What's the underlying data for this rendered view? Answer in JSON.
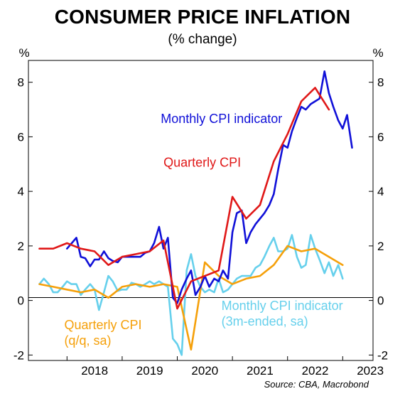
{
  "title": "CONSUMER PRICE INFLATION",
  "subtitle": "(% change)",
  "source": "Source: CBA, Macrobond",
  "chart_data": {
    "type": "line",
    "title": "CONSUMER PRICE INFLATION",
    "subtitle": "(% change)",
    "ylabel_left": "%",
    "ylabel_right": "%",
    "ylim": [
      -2.2,
      8.8
    ],
    "yticks": [
      -2,
      0,
      2,
      4,
      6,
      8
    ],
    "xlim": [
      2017.3,
      2023.55
    ],
    "xtick_labels": [
      "2018",
      "2019",
      "2020",
      "2021",
      "2022",
      "2023"
    ],
    "xtick_positions": [
      2018,
      2019,
      2020,
      2021,
      2022,
      2023
    ],
    "grid": false,
    "series": [
      {
        "name": "Monthly CPI indicator",
        "color": "#1010d8",
        "label_at": [
          2019.7,
          6.5
        ],
        "points": [
          [
            2018.0,
            1.9
          ],
          [
            2018.17,
            2.3
          ],
          [
            2018.25,
            1.6
          ],
          [
            2018.33,
            1.55
          ],
          [
            2018.42,
            1.25
          ],
          [
            2018.5,
            1.5
          ],
          [
            2018.58,
            1.5
          ],
          [
            2018.67,
            1.8
          ],
          [
            2018.75,
            1.55
          ],
          [
            2018.83,
            1.45
          ],
          [
            2018.92,
            1.4
          ],
          [
            2019.0,
            1.6
          ],
          [
            2019.08,
            1.6
          ],
          [
            2019.17,
            1.6
          ],
          [
            2019.25,
            1.6
          ],
          [
            2019.33,
            1.6
          ],
          [
            2019.42,
            1.75
          ],
          [
            2019.5,
            1.8
          ],
          [
            2019.58,
            2.1
          ],
          [
            2019.67,
            2.7
          ],
          [
            2019.75,
            1.9
          ],
          [
            2019.83,
            2.3
          ],
          [
            2019.92,
            0.1
          ],
          [
            2020.0,
            -0.1
          ],
          [
            2020.08,
            0.4
          ],
          [
            2020.17,
            0.8
          ],
          [
            2020.25,
            1.1
          ],
          [
            2020.33,
            0.2
          ],
          [
            2020.42,
            0.5
          ],
          [
            2020.5,
            0.9
          ],
          [
            2020.58,
            0.5
          ],
          [
            2020.67,
            0.8
          ],
          [
            2020.75,
            0.7
          ],
          [
            2020.83,
            1.1
          ],
          [
            2020.92,
            0.8
          ],
          [
            2021.0,
            2.5
          ],
          [
            2021.08,
            3.2
          ],
          [
            2021.17,
            3.3
          ],
          [
            2021.25,
            2.1
          ],
          [
            2021.33,
            2.5
          ],
          [
            2021.42,
            2.8
          ],
          [
            2021.5,
            3.0
          ],
          [
            2021.58,
            3.2
          ],
          [
            2021.67,
            3.5
          ],
          [
            2021.75,
            3.9
          ],
          [
            2021.83,
            4.8
          ],
          [
            2021.92,
            5.7
          ],
          [
            2022.0,
            5.6
          ],
          [
            2022.08,
            6.2
          ],
          [
            2022.17,
            6.7
          ],
          [
            2022.25,
            7.1
          ],
          [
            2022.33,
            7.0
          ],
          [
            2022.42,
            7.2
          ],
          [
            2022.5,
            7.3
          ],
          [
            2022.58,
            7.4
          ],
          [
            2022.67,
            8.4
          ],
          [
            2022.75,
            7.6
          ],
          [
            2022.83,
            7.1
          ],
          [
            2022.92,
            6.6
          ],
          [
            2023.0,
            6.3
          ],
          [
            2023.08,
            6.8
          ],
          [
            2023.17,
            5.6
          ]
        ]
      },
      {
        "name": "Quarterly CPI",
        "color": "#e01818",
        "label_at": [
          2019.75,
          4.9
        ],
        "points": [
          [
            2017.5,
            1.9
          ],
          [
            2017.75,
            1.9
          ],
          [
            2018.0,
            2.1
          ],
          [
            2018.25,
            1.9
          ],
          [
            2018.5,
            1.8
          ],
          [
            2018.75,
            1.3
          ],
          [
            2019.0,
            1.6
          ],
          [
            2019.25,
            1.7
          ],
          [
            2019.5,
            1.8
          ],
          [
            2019.75,
            2.2
          ],
          [
            2020.0,
            -0.3
          ],
          [
            2020.25,
            0.7
          ],
          [
            2020.5,
            0.9
          ],
          [
            2020.75,
            1.1
          ],
          [
            2021.0,
            3.8
          ],
          [
            2021.25,
            3.0
          ],
          [
            2021.5,
            3.5
          ],
          [
            2021.75,
            5.1
          ],
          [
            2022.0,
            6.1
          ],
          [
            2022.25,
            7.3
          ],
          [
            2022.5,
            7.8
          ],
          [
            2022.75,
            7.0
          ]
        ]
      },
      {
        "name": "Quarterly CPI (q/q, sa)",
        "label_lines": [
          "Quarterly CPI",
          "(q/q, sa)"
        ],
        "color": "#f5a00a",
        "label_at": [
          2017.95,
          -1.05
        ],
        "points": [
          [
            2017.5,
            0.6
          ],
          [
            2017.75,
            0.5
          ],
          [
            2018.0,
            0.4
          ],
          [
            2018.25,
            0.3
          ],
          [
            2018.5,
            0.4
          ],
          [
            2018.75,
            0.1
          ],
          [
            2019.0,
            0.5
          ],
          [
            2019.25,
            0.6
          ],
          [
            2019.5,
            0.5
          ],
          [
            2019.75,
            0.6
          ],
          [
            2020.0,
            0.5
          ],
          [
            2020.25,
            -1.8
          ],
          [
            2020.5,
            1.4
          ],
          [
            2020.75,
            0.9
          ],
          [
            2021.0,
            0.6
          ],
          [
            2021.25,
            0.8
          ],
          [
            2021.5,
            0.9
          ],
          [
            2021.75,
            1.3
          ],
          [
            2022.0,
            2.0
          ],
          [
            2022.25,
            1.8
          ],
          [
            2022.5,
            1.9
          ],
          [
            2022.75,
            1.6
          ],
          [
            2023.0,
            1.3
          ]
        ]
      },
      {
        "name": "Monthly CPI indicator (3m-ended, sa)",
        "label_lines": [
          "Monthly CPI indicator",
          "(3m-ended, sa)"
        ],
        "color": "#66d0ec",
        "label_at": [
          2020.8,
          -0.35
        ],
        "points": [
          [
            2017.5,
            0.6
          ],
          [
            2017.58,
            0.8
          ],
          [
            2017.67,
            0.6
          ],
          [
            2017.75,
            0.3
          ],
          [
            2017.83,
            0.3
          ],
          [
            2017.92,
            0.5
          ],
          [
            2018.0,
            0.7
          ],
          [
            2018.08,
            0.6
          ],
          [
            2018.17,
            0.6
          ],
          [
            2018.25,
            0.2
          ],
          [
            2018.33,
            0.4
          ],
          [
            2018.42,
            0.6
          ],
          [
            2018.5,
            0.4
          ],
          [
            2018.58,
            -0.35
          ],
          [
            2018.67,
            0.3
          ],
          [
            2018.75,
            0.9
          ],
          [
            2018.83,
            0.7
          ],
          [
            2018.92,
            0.35
          ],
          [
            2019.0,
            0.4
          ],
          [
            2019.08,
            0.4
          ],
          [
            2019.17,
            0.65
          ],
          [
            2019.25,
            0.6
          ],
          [
            2019.33,
            0.5
          ],
          [
            2019.42,
            0.6
          ],
          [
            2019.5,
            0.7
          ],
          [
            2019.58,
            0.6
          ],
          [
            2019.67,
            0.7
          ],
          [
            2019.75,
            0.6
          ],
          [
            2019.83,
            0.5
          ],
          [
            2019.92,
            -1.4
          ],
          [
            2020.0,
            -1.6
          ],
          [
            2020.08,
            -2.0
          ],
          [
            2020.17,
            1.1
          ],
          [
            2020.25,
            1.7
          ],
          [
            2020.33,
            0.9
          ],
          [
            2020.42,
            0.5
          ],
          [
            2020.5,
            0.3
          ],
          [
            2020.58,
            0.4
          ],
          [
            2020.67,
            0.3
          ],
          [
            2020.75,
            0.8
          ],
          [
            2020.83,
            0.3
          ],
          [
            2020.92,
            0.4
          ],
          [
            2021.0,
            0.6
          ],
          [
            2021.08,
            0.8
          ],
          [
            2021.17,
            0.9
          ],
          [
            2021.25,
            0.9
          ],
          [
            2021.33,
            0.9
          ],
          [
            2021.42,
            1.2
          ],
          [
            2021.5,
            1.3
          ],
          [
            2021.58,
            1.6
          ],
          [
            2021.67,
            2.0
          ],
          [
            2021.75,
            2.3
          ],
          [
            2021.83,
            1.8
          ],
          [
            2021.92,
            1.8
          ],
          [
            2022.0,
            1.9
          ],
          [
            2022.08,
            2.4
          ],
          [
            2022.17,
            1.6
          ],
          [
            2022.25,
            1.2
          ],
          [
            2022.33,
            1.3
          ],
          [
            2022.42,
            2.4
          ],
          [
            2022.5,
            1.9
          ],
          [
            2022.58,
            1.5
          ],
          [
            2022.67,
            1.0
          ],
          [
            2022.75,
            1.4
          ],
          [
            2022.83,
            0.9
          ],
          [
            2022.92,
            1.3
          ],
          [
            2023.0,
            0.8
          ]
        ]
      }
    ]
  }
}
